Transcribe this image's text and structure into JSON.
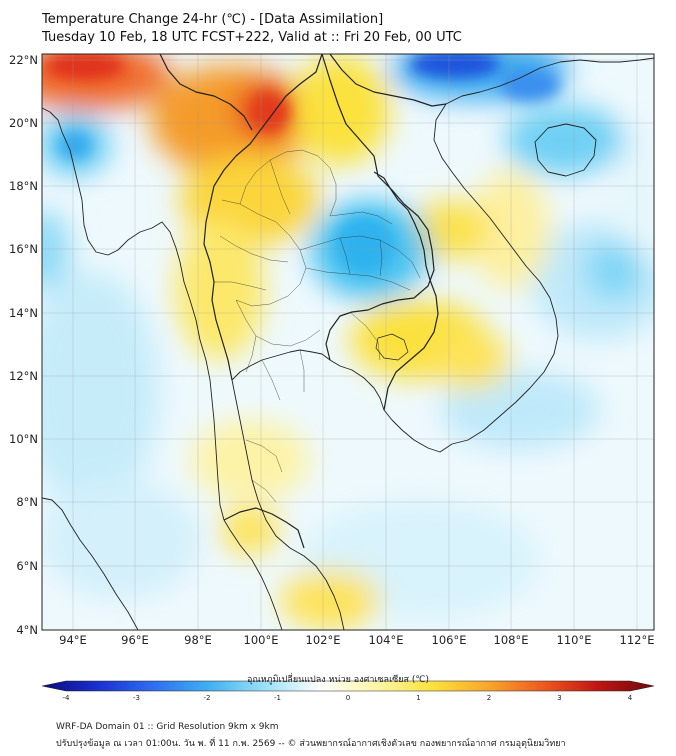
{
  "title": {
    "line1": "Temperature Change 24-hr (℃) - [Data Assimilation]",
    "line2": "Tuesday 10 Feb, 18 UTC FCST+222, Valid at :: Fri 20 Feb, 00 UTC"
  },
  "map": {
    "lon_range": [
      93,
      112.5
    ],
    "lat_range": [
      4,
      22.2
    ],
    "lon_ticks": [
      "94°E",
      "96°E",
      "98°E",
      "100°E",
      "102°E",
      "104°E",
      "106°E",
      "108°E",
      "110°E",
      "112°E"
    ],
    "lat_ticks": [
      "22°N",
      "20°N",
      "18°N",
      "16°N",
      "14°N",
      "12°N",
      "10°N",
      "8°N",
      "6°N",
      "4°N"
    ],
    "field_colors": {
      "strong_warm": "#e83a1c",
      "warm": "#f8a72c",
      "mild_warm": "#fbe33c",
      "slight_warm": "#fdf6a8",
      "neutral": "#ffffff",
      "slight_cool": "#c8eefb",
      "cool": "#4bc6f0",
      "strong_cool": "#1a44d8"
    }
  },
  "colorbar": {
    "label": "อุณหภูมิเปลี่ยนแปลง หน่วย องศาเซลเซียส (℃)",
    "ticks": [
      "-4",
      "-3",
      "-2",
      "-1",
      "0",
      "1",
      "2",
      "3",
      "4"
    ],
    "min": -4,
    "max": 4,
    "colors": [
      "#0b0b7a",
      "#1a2fd0",
      "#2f6ef0",
      "#3fb1f2",
      "#9ae0f7",
      "#ffffff",
      "#fdf6a8",
      "#fbe33c",
      "#f8a72c",
      "#ee5a1f",
      "#c01414",
      "#6e0a0a"
    ]
  },
  "footer": {
    "line1": "WRF-DA Domain 01 :: Grid Resolution 9km x 9km",
    "line2": "ปรับปรุงข้อมูล ณ เวลา 01:00น. วัน พ. ที่ 11 ก.พ. 2569 -- © ส่วนพยากรณ์อากาศเชิงตัวเลข กองพยากรณ์อากาศ กรมอุตุนิยมวิทยา"
  }
}
